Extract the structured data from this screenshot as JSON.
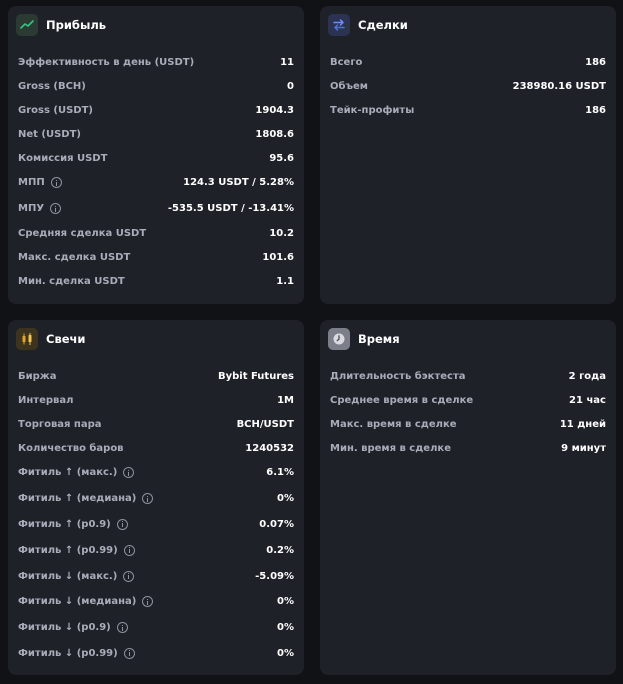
{
  "profit": {
    "title": "Прибыль",
    "icon": "trend-line-icon",
    "accent": "#2f9d6a",
    "rows": [
      {
        "label": "Эффективность в день (USDT)",
        "value": "11"
      },
      {
        "label": "Gross (BCH)",
        "value": "0"
      },
      {
        "label": "Gross (USDT)",
        "value": "1904.3"
      },
      {
        "label": "Net (USDT)",
        "value": "1808.6"
      },
      {
        "label": "Комиссия USDT",
        "value": "95.6"
      },
      {
        "label": "МПП",
        "value": "124.3 USDT / 5.28%"
      },
      {
        "label": "МПУ",
        "value": "-535.5 USDT / -13.41%"
      },
      {
        "label": "Средняя сделка USDT",
        "value": "10.2"
      },
      {
        "label": "Макс. сделка USDT",
        "value": "101.6"
      },
      {
        "label": "Мин. сделка USDT",
        "value": "1.1"
      }
    ]
  },
  "deals": {
    "title": "Сделки",
    "icon": "swap-arrows-icon",
    "accent": "#4f6fe0",
    "rows": [
      {
        "label": "Всего",
        "value": "186"
      },
      {
        "label": "Объем",
        "value": "238980.16 USDT"
      },
      {
        "label": "Тейк-профиты",
        "value": "186"
      }
    ]
  },
  "candles": {
    "title": "Свечи",
    "icon": "candlestick-icon",
    "accent": "#e0a52a",
    "rows": [
      {
        "label": "Биржа",
        "value": "Bybit Futures"
      },
      {
        "label": "Интервал",
        "value": "1M"
      },
      {
        "label": "Торговая пара",
        "value": "BCH/USDT"
      },
      {
        "label": "Количество баров",
        "value": "1240532"
      },
      {
        "label": "Фитиль ↑ (макс.)",
        "value": "6.1%"
      },
      {
        "label": "Фитиль ↑ (медиана)",
        "value": "0%"
      },
      {
        "label": "Фитиль ↑ (p0.9)",
        "value": "0.07%"
      },
      {
        "label": "Фитиль ↑ (p0.99)",
        "value": "0.2%"
      },
      {
        "label": "Фитиль ↓ (макс.)",
        "value": "-5.09%"
      },
      {
        "label": "Фитиль ↓ (медиана)",
        "value": "0%"
      },
      {
        "label": "Фитиль ↓ (p0.9)",
        "value": "0%"
      },
      {
        "label": "Фитиль ↓ (p0.99)",
        "value": "0%"
      }
    ]
  },
  "time": {
    "title": "Время",
    "icon": "clock-icon",
    "accent": "#8a8d99",
    "rows": [
      {
        "label": "Длительность бэктеста",
        "value": "2 года"
      },
      {
        "label": "Среднее время в сделке",
        "value": "21 час"
      },
      {
        "label": "Макс. время в сделке",
        "value": "11 дней"
      },
      {
        "label": "Мин. время в сделке",
        "value": "9 минут"
      }
    ]
  }
}
